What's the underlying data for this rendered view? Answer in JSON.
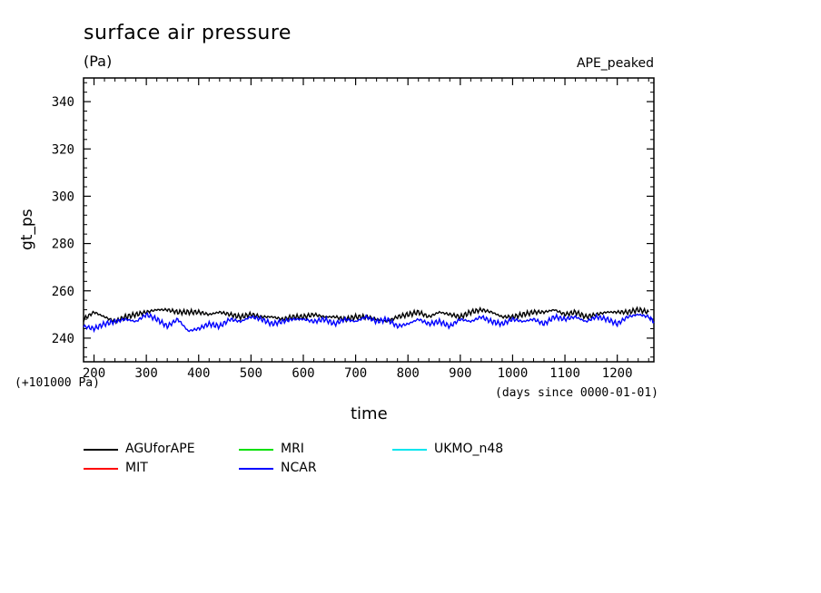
{
  "chart_data": {
    "type": "line",
    "title": "surface air pressure",
    "unit": "(Pa)",
    "run_label": "APE_peaked",
    "ylabel": "gt_ps",
    "xlabel": "time",
    "x_units": "(days since 0000-01-01)",
    "y_offset_label": "(+101000 Pa)",
    "xlim": [
      180,
      1270
    ],
    "ylim": [
      230,
      350
    ],
    "xticks": [
      200,
      300,
      400,
      500,
      600,
      700,
      800,
      900,
      1000,
      1100,
      1200
    ],
    "yticks": [
      240,
      260,
      280,
      300,
      320,
      340
    ],
    "series": [
      {
        "name": "AGUforAPE",
        "color": "#000000",
        "x": [
          180,
          200,
          220,
          240,
          260,
          280,
          300,
          320,
          340,
          360,
          380,
          400,
          420,
          440,
          460,
          480,
          500,
          520,
          540,
          560,
          580,
          600,
          620,
          640,
          660,
          680,
          700,
          720,
          740,
          760,
          780,
          800,
          820,
          840,
          860,
          880,
          900,
          920,
          940,
          960,
          980,
          1000,
          1020,
          1040,
          1060,
          1080,
          1100,
          1120,
          1140,
          1160,
          1180,
          1200,
          1220,
          1240,
          1260
        ],
        "values": [
          248,
          251,
          249,
          247,
          249,
          250,
          251,
          252,
          252,
          251,
          251,
          251,
          250,
          251,
          250,
          249,
          250,
          249,
          249,
          248,
          249,
          249,
          250,
          249,
          249,
          248,
          249,
          249,
          248,
          247,
          249,
          250,
          251,
          249,
          251,
          250,
          249,
          251,
          252,
          251,
          249,
          249,
          250,
          251,
          251,
          252,
          250,
          251,
          249,
          250,
          251,
          251,
          251,
          252,
          251
        ]
      },
      {
        "name": "MIT",
        "color": "#ff0000",
        "x": [],
        "values": []
      },
      {
        "name": "MRI",
        "color": "#00e000",
        "x": [],
        "values": []
      },
      {
        "name": "NCAR",
        "color": "#0000ff",
        "x": [
          180,
          200,
          220,
          240,
          260,
          280,
          300,
          320,
          340,
          360,
          380,
          400,
          420,
          440,
          460,
          480,
          500,
          520,
          540,
          560,
          580,
          600,
          620,
          640,
          660,
          680,
          700,
          720,
          740,
          760,
          780,
          800,
          820,
          840,
          860,
          880,
          900,
          920,
          940,
          960,
          980,
          1000,
          1020,
          1040,
          1060,
          1080,
          1100,
          1120,
          1140,
          1160,
          1180,
          1200,
          1220,
          1240,
          1260,
          1270
        ],
        "values": [
          245,
          244,
          246,
          247,
          248,
          247,
          250,
          248,
          245,
          248,
          243,
          244,
          246,
          245,
          248,
          247,
          249,
          248,
          246,
          247,
          248,
          248,
          247,
          248,
          246,
          248,
          247,
          249,
          247,
          248,
          245,
          246,
          248,
          246,
          247,
          245,
          248,
          247,
          249,
          247,
          246,
          248,
          247,
          248,
          246,
          249,
          248,
          249,
          247,
          249,
          248,
          246,
          249,
          250,
          249,
          247
        ]
      },
      {
        "name": "UKMO_n48",
        "color": "#00e5ee",
        "x": [],
        "values": []
      }
    ],
    "legend_placement": "bottom",
    "grid": false
  }
}
